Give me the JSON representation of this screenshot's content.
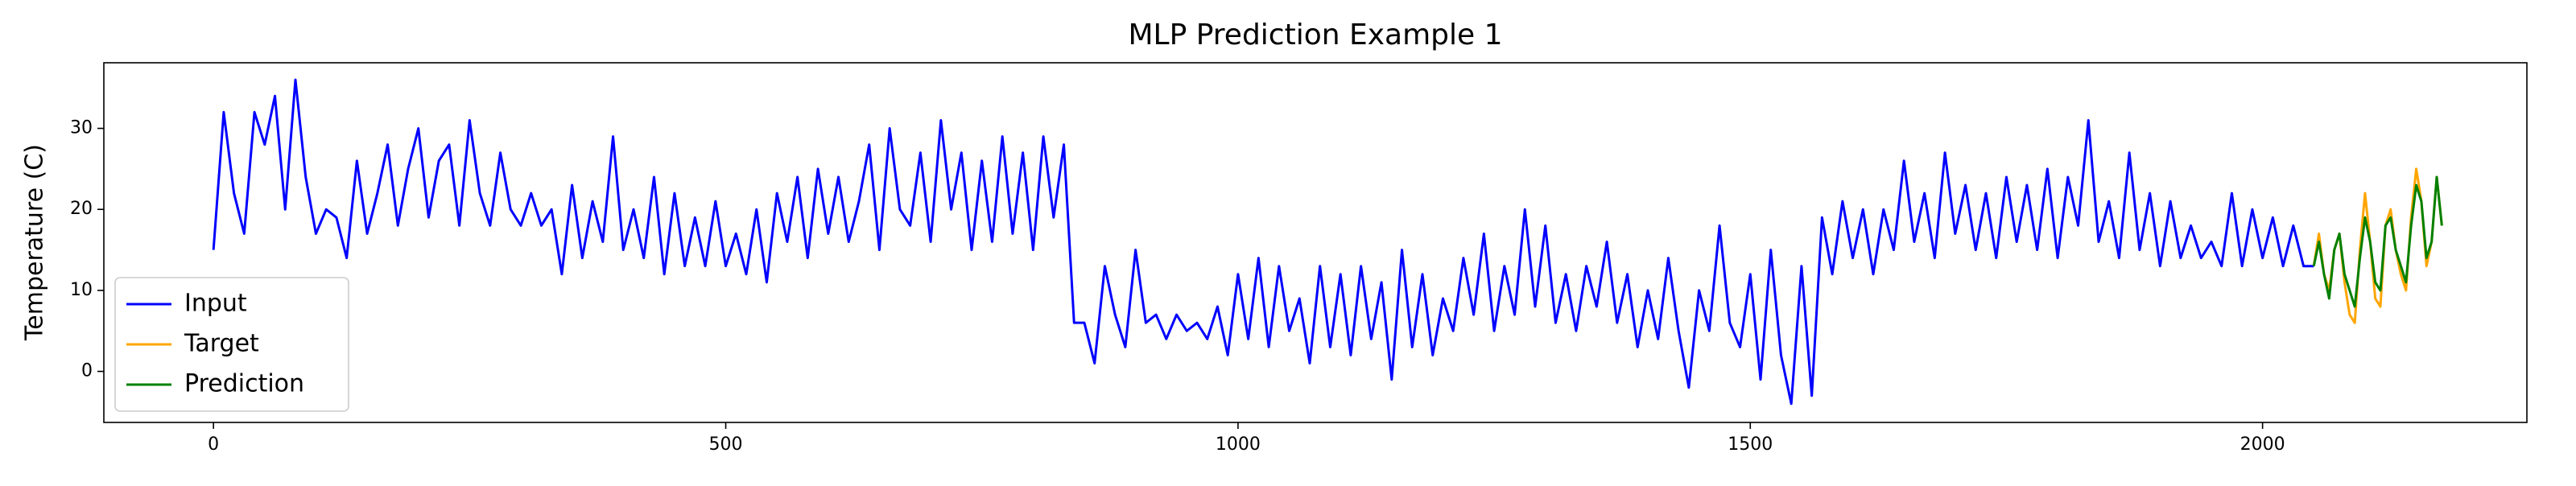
{
  "chart_data": {
    "type": "line",
    "title": "MLP Prediction Example 1",
    "ylabel": "Temperature (C)",
    "xlim": [
      -107,
      2258
    ],
    "ylim": [
      -6.3,
      38.1
    ],
    "xticks": [
      0,
      500,
      1000,
      1500,
      2000
    ],
    "yticks": [
      0,
      10,
      20,
      30
    ],
    "legend": "lower left",
    "grid": false,
    "series": [
      {
        "name": "Input",
        "color": "blue",
        "x": [
          0,
          10,
          20,
          30,
          40,
          50,
          60,
          70,
          80,
          90,
          100,
          110,
          120,
          130,
          140,
          150,
          160,
          170,
          180,
          190,
          200,
          210,
          220,
          230,
          240,
          250,
          260,
          270,
          280,
          290,
          300,
          310,
          320,
          330,
          340,
          350,
          360,
          370,
          380,
          390,
          400,
          410,
          420,
          430,
          440,
          450,
          460,
          470,
          480,
          490,
          500,
          510,
          520,
          530,
          540,
          550,
          560,
          570,
          580,
          590,
          600,
          610,
          620,
          630,
          640,
          650,
          660,
          670,
          680,
          690,
          700,
          710,
          720,
          730,
          740,
          750,
          760,
          770,
          780,
          790,
          800,
          810,
          820,
          830,
          840,
          850,
          860,
          870,
          880,
          890,
          900,
          910,
          920,
          930,
          940,
          950,
          960,
          970,
          980,
          990,
          1000,
          1010,
          1020,
          1030,
          1040,
          1050,
          1060,
          1070,
          1080,
          1090,
          1100,
          1110,
          1120,
          1130,
          1140,
          1150,
          1160,
          1170,
          1180,
          1190,
          1200,
          1210,
          1220,
          1230,
          1240,
          1250,
          1260,
          1270,
          1280,
          1290,
          1300,
          1310,
          1320,
          1330,
          1340,
          1350,
          1360,
          1370,
          1380,
          1390,
          1400,
          1410,
          1420,
          1430,
          1440,
          1450,
          1460,
          1470,
          1480,
          1490,
          1500,
          1510,
          1520,
          1530,
          1540,
          1550,
          1560,
          1570,
          1580,
          1590,
          1600,
          1610,
          1620,
          1630,
          1640,
          1650,
          1660,
          1670,
          1680,
          1690,
          1700,
          1710,
          1720,
          1730,
          1740,
          1750,
          1760,
          1770,
          1780,
          1790,
          1800,
          1810,
          1820,
          1830,
          1840,
          1850,
          1860,
          1870,
          1880,
          1890,
          1900,
          1910,
          1920,
          1930,
          1940,
          1950,
          1960,
          1970,
          1980,
          1990,
          2000,
          2010,
          2020,
          2030,
          2040,
          2050
        ],
        "values": [
          15,
          32,
          22,
          17,
          32,
          28,
          34,
          20,
          36,
          24,
          17,
          20,
          19,
          14,
          26,
          17,
          22,
          28,
          18,
          25,
          30,
          19,
          26,
          28,
          18,
          31,
          22,
          18,
          27,
          20,
          18,
          22,
          18,
          20,
          12,
          23,
          14,
          21,
          16,
          29,
          15,
          20,
          14,
          24,
          12,
          22,
          13,
          19,
          13,
          21,
          13,
          17,
          12,
          20,
          11,
          22,
          16,
          24,
          14,
          25,
          17,
          24,
          16,
          21,
          28,
          15,
          30,
          20,
          18,
          27,
          16,
          31,
          20,
          27,
          15,
          26,
          16,
          29,
          17,
          27,
          15,
          29,
          19,
          28,
          6,
          6,
          1,
          13,
          7,
          3,
          15,
          6,
          7,
          4,
          7,
          5,
          6,
          4,
          8,
          2,
          12,
          4,
          14,
          3,
          13,
          5,
          9,
          1,
          13,
          3,
          12,
          2,
          13,
          4,
          11,
          -1,
          15,
          3,
          12,
          2,
          9,
          5,
          14,
          7,
          17,
          5,
          13,
          7,
          20,
          8,
          18,
          6,
          12,
          5,
          13,
          8,
          16,
          6,
          12,
          3,
          10,
          4,
          14,
          5,
          -2,
          10,
          5,
          18,
          6,
          3,
          12,
          -1,
          15,
          2,
          -4,
          13,
          -3,
          19,
          12,
          21,
          14,
          20,
          12,
          20,
          15,
          26,
          16,
          22,
          14,
          27,
          17,
          23,
          15,
          22,
          14,
          24,
          16,
          23,
          15,
          25,
          14,
          24,
          18,
          31,
          16,
          21,
          14,
          27,
          15,
          22,
          13,
          21,
          14,
          18,
          14,
          16,
          13,
          22,
          13,
          20,
          14,
          19,
          13,
          18,
          13,
          13
        ]
      },
      {
        "name": "Target",
        "color": "orange",
        "x": [
          2050,
          2055,
          2060,
          2065,
          2070,
          2075,
          2080,
          2085,
          2090,
          2095,
          2100,
          2105,
          2110,
          2115,
          2120,
          2125,
          2130,
          2135,
          2140,
          2145,
          2150,
          2155,
          2160,
          2165,
          2170,
          2175
        ],
        "values": [
          13,
          17,
          12,
          10,
          15,
          17,
          11,
          7,
          6,
          15,
          22,
          16,
          9,
          8,
          18,
          20,
          15,
          12,
          10,
          19,
          25,
          21,
          13,
          16,
          24,
          18
        ]
      },
      {
        "name": "Prediction",
        "color": "green",
        "x": [
          2050,
          2055,
          2060,
          2065,
          2070,
          2075,
          2080,
          2085,
          2090,
          2095,
          2100,
          2105,
          2110,
          2115,
          2120,
          2125,
          2130,
          2135,
          2140,
          2145,
          2150,
          2155,
          2160,
          2165,
          2170,
          2175
        ],
        "values": [
          13,
          16,
          12,
          9,
          15,
          17,
          12,
          10,
          8,
          14,
          19,
          16,
          11,
          10,
          18,
          19,
          15,
          13,
          11,
          18,
          23,
          21,
          14,
          16,
          24,
          18
        ]
      }
    ]
  }
}
